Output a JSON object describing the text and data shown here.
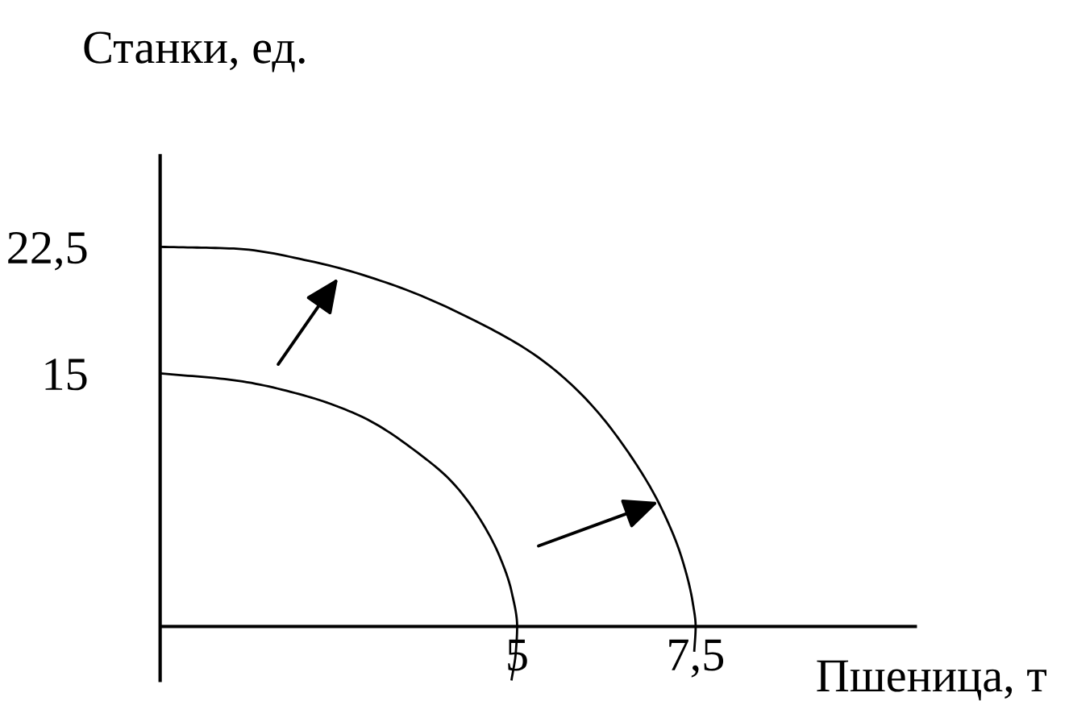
{
  "chart_data": {
    "type": "line",
    "xlabel": "Пшеница, т",
    "ylabel": "Станки, ед.",
    "xlim": [
      0,
      10.6
    ],
    "ylim": [
      -3.3,
      28
    ],
    "xticks": [
      {
        "value": 5,
        "label": "5"
      },
      {
        "value": 7.5,
        "label": "7,5"
      }
    ],
    "yticks": [
      {
        "value": 15,
        "label": "15"
      },
      {
        "value": 22.5,
        "label": "22,5"
      }
    ],
    "series": [
      {
        "color": "#000000",
        "x": [
          0,
          1.03,
          2.01,
          2.84,
          3.7,
          4.08,
          4.46,
          4.76,
          4.92,
          5,
          4.98,
          4.92
        ],
        "values": [
          15,
          14.6,
          13.7,
          12.4,
          10.0,
          8.6,
          6.5,
          4.1,
          2.1,
          0,
          -1.6,
          -3.2
        ]
      },
      {
        "color": "#000000",
        "x": [
          0,
          1.03,
          2.16,
          3.29,
          4.42,
          5.28,
          5.96,
          6.56,
          7.01,
          7.31,
          7.46,
          7.5,
          7.48
        ],
        "values": [
          22.5,
          22.4,
          21.6,
          20.2,
          18.1,
          16.0,
          13.5,
          10.3,
          7.1,
          4.0,
          1.4,
          0,
          -1.5
        ]
      }
    ]
  }
}
